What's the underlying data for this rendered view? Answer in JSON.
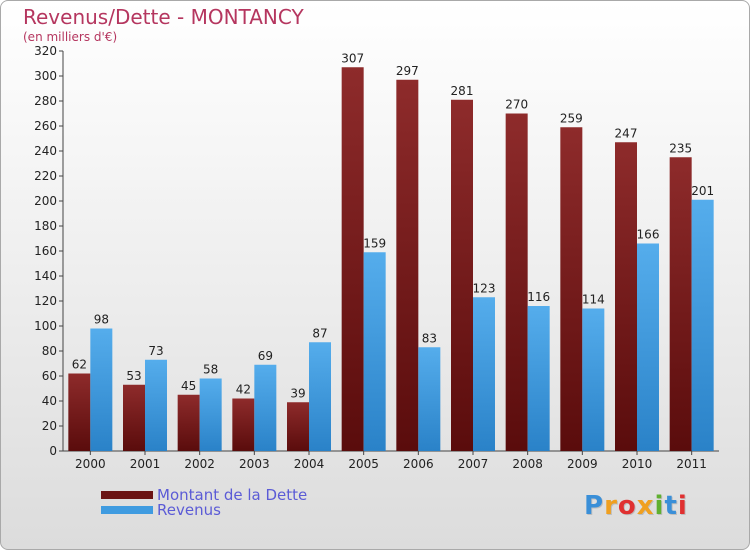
{
  "header": {
    "title": "Revenus/Dette - MONTANCY",
    "subtitle": "(en milliers d'€)"
  },
  "colors": {
    "title": "#b5365f",
    "dette": "#7a1e1e",
    "revenus": "#3f9be0",
    "legend_text": "#5b5bd6"
  },
  "chart_data": {
    "type": "bar",
    "title": "Revenus/Dette - MONTANCY",
    "ylabel": "(en milliers d'€)",
    "xlabel": "",
    "categories": [
      "2000",
      "2001",
      "2002",
      "2003",
      "2004",
      "2005",
      "2006",
      "2007",
      "2008",
      "2009",
      "2010",
      "2011"
    ],
    "series": [
      {
        "name": "Montant de la Dette",
        "values": [
          62,
          53,
          45,
          42,
          39,
          307,
          297,
          281,
          270,
          259,
          247,
          235
        ]
      },
      {
        "name": "Revenus",
        "values": [
          98,
          73,
          58,
          69,
          87,
          159,
          83,
          123,
          116,
          114,
          166,
          201
        ]
      }
    ],
    "ylim": [
      0,
      320
    ],
    "yticks": [
      0,
      20,
      40,
      60,
      80,
      100,
      120,
      140,
      160,
      180,
      200,
      220,
      240,
      260,
      280,
      300,
      320
    ],
    "grid": false,
    "legend_position": "bottom-left"
  },
  "legend": {
    "items": [
      {
        "label": "Montant de la Dette"
      },
      {
        "label": "Revenus"
      }
    ]
  },
  "logo": {
    "letters": [
      "P",
      "r",
      "o",
      "x",
      "i",
      "t",
      "i"
    ],
    "colors": [
      "#3a8fd8",
      "#f0a020",
      "#e03030",
      "#f0a020",
      "#60b030",
      "#3a8fd8",
      "#e03030"
    ]
  }
}
